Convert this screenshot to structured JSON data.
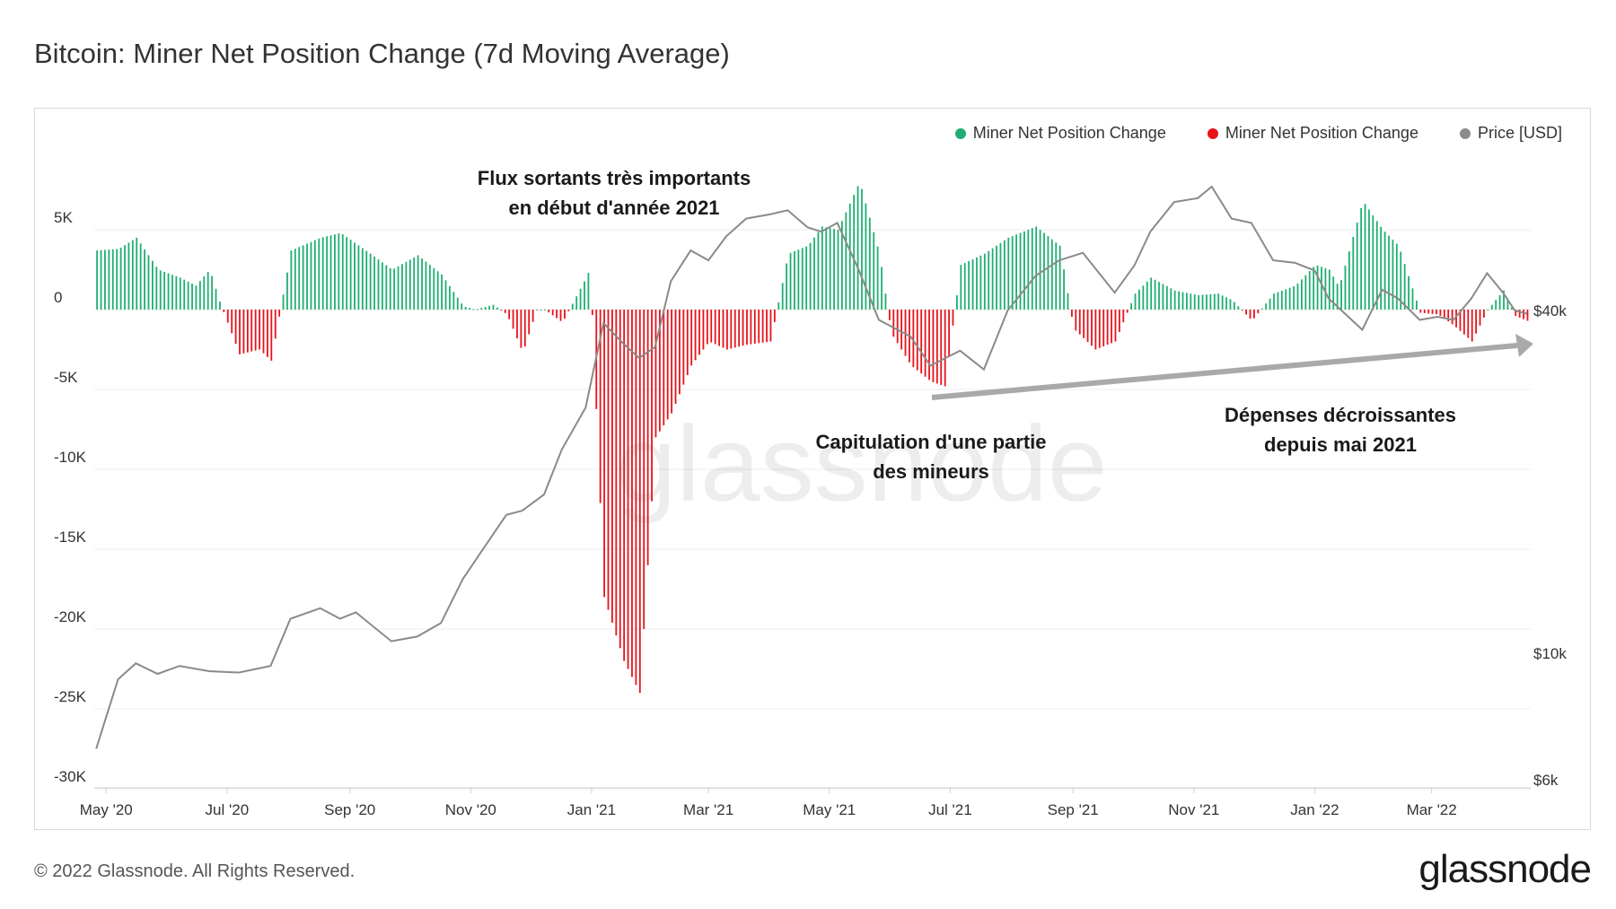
{
  "header": {
    "title": "Bitcoin: Miner Net Position Change (7d Moving Average)"
  },
  "legend": [
    {
      "label": "Miner Net Position Change",
      "color": "#1fae72"
    },
    {
      "label": "Miner Net Position Change",
      "color": "#e8121b"
    },
    {
      "label": "Price [USD]",
      "color": "#8a8a8a"
    }
  ],
  "footer": {
    "copyright": "© 2022 Glassnode. All Rights Reserved.",
    "brand": "glassnode"
  },
  "watermark": "glassnode",
  "chart_data": {
    "type": "bar",
    "title": "Bitcoin: Miner Net Position Change (7d Moving Average)",
    "x_tick_labels": [
      "May '20",
      "Jul '20",
      "Sep '20",
      "Nov '20",
      "Jan '21",
      "Mar '21",
      "May '21",
      "Jul '21",
      "Sep '21",
      "Nov '21",
      "Jan '22",
      "Mar '22"
    ],
    "y_left_ticks": [
      "5K",
      "0",
      "-5K",
      "-10K",
      "-15K",
      "-20K",
      "-25K",
      "-30K"
    ],
    "y_left_values": [
      5000,
      0,
      -5000,
      -10000,
      -15000,
      -20000,
      -25000,
      -30000
    ],
    "y_right_ticks": [
      "$40k",
      "$10k",
      "$6k"
    ],
    "y_right_values": [
      40000,
      10000,
      6000
    ],
    "ylim_left": [
      -30000,
      8000
    ],
    "x_range": [
      "2020-04-25",
      "2022-04-20"
    ],
    "grid": true,
    "legend_position": "top-right",
    "annotations": [
      {
        "lines": [
          "Flux sortants très importants",
          "en début d'année 2021"
        ]
      },
      {
        "lines": [
          "Capitulation d'une partie",
          "des mineurs"
        ]
      },
      {
        "lines": [
          "Dépenses décroissantes",
          "depuis mai 2021"
        ]
      }
    ],
    "series": [
      {
        "name": "Miner Net Position Change",
        "color_positive": "#1fae72",
        "color_negative": "#e8121b",
        "x": [
          "2020-04-26",
          "2020-05-07",
          "2020-05-16",
          "2020-05-27",
          "2020-06-07",
          "2020-06-15",
          "2020-06-22",
          "2020-06-27",
          "2020-07-07",
          "2020-07-17",
          "2020-07-23",
          "2020-08-02",
          "2020-08-17",
          "2020-08-27",
          "2020-09-11",
          "2020-09-22",
          "2020-10-05",
          "2020-10-17",
          "2020-10-28",
          "2020-11-03",
          "2020-11-12",
          "2020-11-19",
          "2020-11-27",
          "2020-12-04",
          "2020-12-08",
          "2020-12-17",
          "2020-12-29",
          "2020-12-31",
          "2021-01-07",
          "2021-01-17",
          "2021-01-25",
          "2021-02-02",
          "2021-02-10",
          "2021-02-20",
          "2021-03-01",
          "2021-03-10",
          "2021-03-20",
          "2021-04-01",
          "2021-04-10",
          "2021-04-20",
          "2021-04-27",
          "2021-05-05",
          "2021-05-16",
          "2021-05-26",
          "2021-06-01",
          "2021-06-11",
          "2021-06-21",
          "2021-06-28",
          "2021-07-06",
          "2021-07-18",
          "2021-07-30",
          "2021-08-13",
          "2021-08-25",
          "2021-09-01",
          "2021-09-12",
          "2021-09-22",
          "2021-10-02",
          "2021-10-10",
          "2021-10-22",
          "2021-11-03",
          "2021-11-13",
          "2021-11-20",
          "2021-11-30",
          "2021-12-11",
          "2021-12-22",
          "2022-01-01",
          "2022-01-08",
          "2022-01-13",
          "2022-01-25",
          "2022-02-04",
          "2022-02-12",
          "2022-02-23",
          "2022-03-04",
          "2022-03-12",
          "2022-03-21",
          "2022-03-29",
          "2022-04-06",
          "2022-04-12",
          "2022-04-18"
        ],
        "values": [
          3700,
          3800,
          4500,
          2500,
          2000,
          1500,
          2500,
          500,
          -2800,
          -2500,
          -3200,
          3700,
          4500,
          4800,
          3500,
          2500,
          3400,
          2200,
          200,
          0,
          300,
          -300,
          -2700,
          0,
          0,
          -800,
          2000,
          2600,
          -18000,
          -22000,
          -24000,
          -8000,
          -6500,
          -3500,
          -2000,
          -2500,
          -2200,
          -2000,
          3500,
          4000,
          5200,
          5000,
          8000,
          3500,
          -1500,
          -3500,
          -4500,
          -4800,
          2800,
          3500,
          4500,
          5200,
          4000,
          -1200,
          -2500,
          -2000,
          1000,
          2000,
          1200,
          900,
          1000,
          600,
          -700,
          1000,
          1500,
          2800,
          2500,
          1400,
          6800,
          5000,
          4000,
          -200,
          -300,
          -1000,
          -2000,
          0,
          1200,
          -400,
          -700
        ]
      },
      {
        "name": "Price [USD]",
        "color": "#8a8a8a",
        "x": [
          "2020-04-26",
          "2020-05-07",
          "2020-05-16",
          "2020-05-27",
          "2020-06-07",
          "2020-06-22",
          "2020-07-07",
          "2020-07-23",
          "2020-08-02",
          "2020-08-17",
          "2020-08-27",
          "2020-09-04",
          "2020-09-22",
          "2020-10-05",
          "2020-10-17",
          "2020-10-28",
          "2020-11-07",
          "2020-11-19",
          "2020-11-27",
          "2020-12-08",
          "2020-12-17",
          "2020-12-29",
          "2021-01-07",
          "2021-01-17",
          "2021-01-25",
          "2021-02-02",
          "2021-02-10",
          "2021-02-20",
          "2021-03-01",
          "2021-03-10",
          "2021-03-20",
          "2021-04-01",
          "2021-04-10",
          "2021-04-20",
          "2021-04-27",
          "2021-05-05",
          "2021-05-16",
          "2021-05-26",
          "2021-06-11",
          "2021-06-21",
          "2021-07-06",
          "2021-07-18",
          "2021-07-30",
          "2021-08-13",
          "2021-08-25",
          "2021-09-06",
          "2021-09-22",
          "2021-10-02",
          "2021-10-10",
          "2021-10-22",
          "2021-11-03",
          "2021-11-10",
          "2021-11-20",
          "2021-11-30",
          "2021-12-11",
          "2021-12-22",
          "2022-01-01",
          "2022-01-08",
          "2022-01-25",
          "2022-02-04",
          "2022-02-12",
          "2022-02-23",
          "2022-03-04",
          "2022-03-12",
          "2022-03-21",
          "2022-03-29",
          "2022-04-06",
          "2022-04-12",
          "2022-04-18"
        ],
        "values": [
          6800,
          9000,
          9600,
          9200,
          9500,
          9300,
          9250,
          9500,
          11500,
          12000,
          11500,
          11800,
          10500,
          10700,
          11300,
          13500,
          15200,
          17500,
          17800,
          19000,
          22800,
          27000,
          38000,
          35000,
          33000,
          34500,
          45000,
          51000,
          49000,
          54000,
          58000,
          59000,
          60000,
          56000,
          55000,
          57000,
          47000,
          38500,
          36000,
          32000,
          34000,
          31500,
          40000,
          46000,
          49000,
          50500,
          43000,
          48000,
          55000,
          62000,
          63000,
          66000,
          58000,
          57000,
          49000,
          48500,
          47000,
          42000,
          37000,
          43500,
          42000,
          38500,
          39000,
          38500,
          42000,
          46500,
          43000,
          40000,
          39500
        ]
      }
    ]
  }
}
